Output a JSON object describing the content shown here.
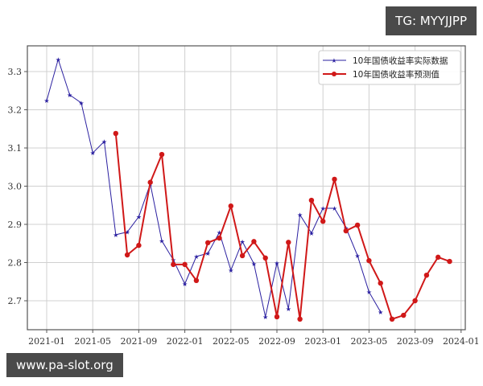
{
  "watermarks": {
    "top_right": "TG: MYYJJPP",
    "bottom_left": "www.pa-slot.org"
  },
  "colors": {
    "actual": "#2a1fa0",
    "predicted": "#d01818",
    "grid": "#d0d0d0",
    "axis": "#555555"
  },
  "chart_data": {
    "type": "line",
    "title": "",
    "xlabel": "",
    "ylabel": "",
    "ylim": [
      2.62,
      3.37
    ],
    "yticks": [
      2.7,
      2.8,
      2.9,
      3.0,
      3.1,
      3.2,
      3.3
    ],
    "ytick_labels": [
      "2.7",
      "2.8",
      "2.9",
      "3.0",
      "3.1",
      "3.2",
      "3.3"
    ],
    "xticks": [
      "2021-01",
      "2021-05",
      "2021-09",
      "2022-01",
      "2022-05",
      "2022-09",
      "2023-01",
      "2023-05",
      "2023-09",
      "2024-01"
    ],
    "grid": true,
    "legend_position": "upper right",
    "series": [
      {
        "name": "10年国债收益率实际数据",
        "color": "#2a1fa0",
        "marker": "star",
        "x": [
          "2021-01",
          "2021-02",
          "2021-03",
          "2021-04",
          "2021-05",
          "2021-06",
          "2021-07",
          "2021-08",
          "2021-09",
          "2021-10",
          "2021-11",
          "2021-12",
          "2022-01",
          "2022-02",
          "2022-03",
          "2022-04",
          "2022-05",
          "2022-06",
          "2022-07",
          "2022-08",
          "2022-09",
          "2022-10",
          "2022-11",
          "2022-12",
          "2023-01",
          "2023-02",
          "2023-03",
          "2023-04",
          "2023-05",
          "2023-06"
        ],
        "values": [
          3.224,
          3.332,
          3.239,
          3.218,
          3.087,
          3.117,
          2.873,
          2.88,
          2.92,
          3.006,
          2.857,
          2.807,
          2.744,
          2.816,
          2.824,
          2.879,
          2.78,
          2.855,
          2.797,
          2.658,
          2.799,
          2.679,
          2.925,
          2.877,
          2.942,
          2.942,
          2.891,
          2.818,
          2.723,
          2.671
        ]
      },
      {
        "name": "10年国债收益率预测值",
        "color": "#d01818",
        "marker": "circle",
        "x": [
          "2021-07",
          "2021-08",
          "2021-09",
          "2021-10",
          "2021-11",
          "2021-12",
          "2022-01",
          "2022-02",
          "2022-03",
          "2022-04",
          "2022-05",
          "2022-06",
          "2022-07",
          "2022-08",
          "2022-09",
          "2022-10",
          "2022-11",
          "2022-12",
          "2023-01",
          "2023-02",
          "2023-03",
          "2023-04",
          "2023-05",
          "2023-06",
          "2023-07",
          "2023-08",
          "2023-09",
          "2023-10",
          "2023-11",
          "2023-12"
        ],
        "values": [
          3.138,
          2.82,
          2.845,
          3.01,
          3.083,
          2.795,
          2.795,
          2.753,
          2.852,
          2.864,
          2.948,
          2.818,
          2.855,
          2.812,
          2.658,
          2.853,
          2.652,
          2.963,
          2.908,
          3.018,
          2.883,
          2.898,
          2.805,
          2.746,
          2.652,
          2.662,
          2.7,
          2.767,
          2.814,
          2.803
        ]
      }
    ]
  }
}
